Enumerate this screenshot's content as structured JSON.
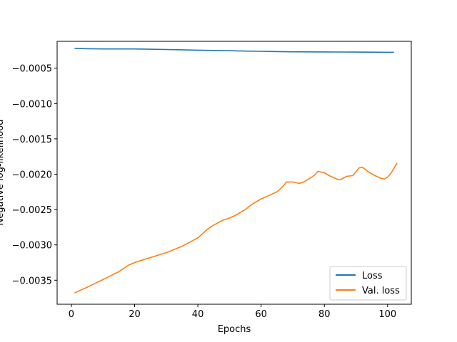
{
  "chart_data": {
    "type": "line",
    "title": "",
    "xlabel": "Epochs",
    "ylabel": "Negative log-likelihood",
    "xlim": [
      -4.5,
      107.5
    ],
    "ylim": [
      -0.00384,
      -0.00012
    ],
    "xticks": [
      0,
      20,
      40,
      60,
      80,
      100
    ],
    "xtick_labels": [
      "0",
      "20",
      "40",
      "60",
      "80",
      "100"
    ],
    "yticks": [
      -0.0035,
      -0.003,
      -0.0025,
      -0.002,
      -0.0015,
      -0.001,
      -0.0005
    ],
    "ytick_labels": [
      "−0.0035",
      "−0.0030",
      "−0.0025",
      "−0.0020",
      "−0.0015",
      "−0.0010",
      "−0.0005"
    ],
    "grid": false,
    "legend_position": "lower-right",
    "series": [
      {
        "name": "Loss",
        "color": "#1f77b4",
        "points": [
          [
            1,
            -0.000219
          ],
          [
            5,
            -0.000225
          ],
          [
            10,
            -0.000228
          ],
          [
            15,
            -0.000228
          ],
          [
            20,
            -0.000228
          ],
          [
            25,
            -0.000232
          ],
          [
            30,
            -0.000236
          ],
          [
            35,
            -0.00024
          ],
          [
            40,
            -0.000245
          ],
          [
            45,
            -0.000249
          ],
          [
            50,
            -0.000253
          ],
          [
            55,
            -0.000258
          ],
          [
            60,
            -0.000261
          ],
          [
            65,
            -0.000265
          ],
          [
            70,
            -0.000268
          ],
          [
            75,
            -0.000269
          ],
          [
            80,
            -0.00027
          ],
          [
            85,
            -0.000271
          ],
          [
            90,
            -0.000272
          ],
          [
            95,
            -0.000273
          ],
          [
            100,
            -0.000275
          ],
          [
            102,
            -0.000274
          ]
        ]
      },
      {
        "name": "Val. loss",
        "color": "#ff7f0e",
        "points": [
          [
            1,
            -0.00368
          ],
          [
            5,
            -0.0036
          ],
          [
            10,
            -0.00349
          ],
          [
            15,
            -0.00338
          ],
          [
            18,
            -0.00329
          ],
          [
            20,
            -0.00325
          ],
          [
            25,
            -0.00318
          ],
          [
            30,
            -0.00311
          ],
          [
            35,
            -0.00302
          ],
          [
            40,
            -0.0029
          ],
          [
            43,
            -0.00278
          ],
          [
            45,
            -0.00272
          ],
          [
            48,
            -0.00265
          ],
          [
            50,
            -0.00262
          ],
          [
            52,
            -0.00258
          ],
          [
            55,
            -0.0025
          ],
          [
            57,
            -0.00243
          ],
          [
            60,
            -0.00235
          ],
          [
            63,
            -0.00229
          ],
          [
            65,
            -0.00225
          ],
          [
            67,
            -0.00217
          ],
          [
            68,
            -0.00211
          ],
          [
            70,
            -0.00211
          ],
          [
            72,
            -0.00213
          ],
          [
            73,
            -0.00212
          ],
          [
            75,
            -0.00207
          ],
          [
            77,
            -0.00201
          ],
          [
            78,
            -0.00196
          ],
          [
            80,
            -0.00198
          ],
          [
            82,
            -0.00203
          ],
          [
            84,
            -0.00207
          ],
          [
            85,
            -0.00208
          ],
          [
            87,
            -0.00203
          ],
          [
            89,
            -0.00202
          ],
          [
            91,
            -0.00191
          ],
          [
            92,
            -0.0019
          ],
          [
            94,
            -0.00197
          ],
          [
            96,
            -0.00202
          ],
          [
            98,
            -0.00206
          ],
          [
            99,
            -0.00207
          ],
          [
            100,
            -0.00204
          ],
          [
            101,
            -0.00199
          ],
          [
            102,
            -0.00192
          ],
          [
            103,
            -0.00184
          ]
        ]
      }
    ]
  }
}
